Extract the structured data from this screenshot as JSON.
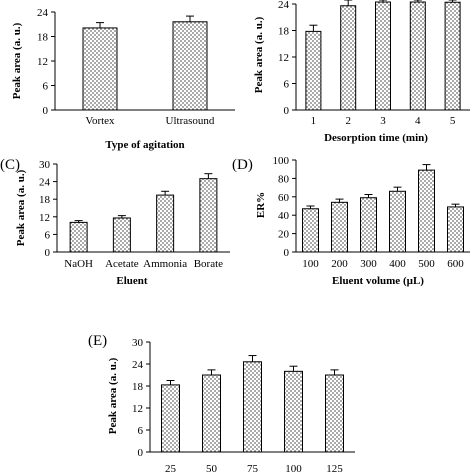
{
  "figure": {
    "pattern_color": "#6e6e6e",
    "panels": [
      {
        "panel_label": "",
        "chart_data": {
          "type": "bar",
          "categories": [
            "Vortex",
            "Ultrasound"
          ],
          "values": [
            20.1,
            21.6
          ],
          "errors": [
            1.3,
            1.4
          ],
          "xlabel": "Type of agitation",
          "ylabel": "Peak area (a. u.)",
          "ylim": [
            0,
            24
          ],
          "yticks": [
            0,
            6,
            12,
            18,
            24
          ],
          "grid": false
        }
      },
      {
        "panel_label": "",
        "chart_data": {
          "type": "bar",
          "categories": [
            "1",
            "2",
            "3",
            "4",
            "5"
          ],
          "values": [
            17.8,
            23.6,
            24.9,
            24.9,
            24.4
          ],
          "errors": [
            1.4,
            1.9,
            1.6,
            1.6,
            1.6
          ],
          "xlabel": "Desorption time (min)",
          "ylabel": "Peak area (a. u.)",
          "ylim": [
            0,
            24
          ],
          "yticks": [
            0,
            6,
            12,
            18,
            24
          ],
          "grid": false
        }
      },
      {
        "panel_label": "(C)",
        "chart_data": {
          "type": "bar",
          "categories": [
            "NaOH",
            "Acetate",
            "Ammonia",
            "Borate"
          ],
          "values": [
            10.1,
            11.6,
            19.4,
            25.0
          ],
          "errors": [
            0.6,
            0.8,
            1.3,
            1.7
          ],
          "xlabel": "Eluent",
          "ylabel": "Peak area (a. u.)",
          "ylim": [
            0,
            30
          ],
          "yticks": [
            0,
            6,
            12,
            18,
            24,
            30
          ],
          "grid": false
        }
      },
      {
        "panel_label": "(D)",
        "chart_data": {
          "type": "bar",
          "categories": [
            "100",
            "200",
            "300",
            "400",
            "500",
            "600"
          ],
          "values": [
            47,
            54,
            59,
            66,
            89,
            49
          ],
          "errors": [
            3,
            3.5,
            3.5,
            4.5,
            6,
            3
          ],
          "xlabel": "Eluent volume (µL)",
          "ylabel": "ER%",
          "ylim": [
            0,
            100
          ],
          "yticks": [
            0,
            20,
            40,
            60,
            80,
            100
          ],
          "grid": false
        }
      },
      {
        "panel_label": "(E)",
        "chart_data": {
          "type": "bar",
          "categories": [
            "25",
            "50",
            "75",
            "100",
            "125"
          ],
          "values": [
            18.3,
            21.0,
            24.6,
            22.0,
            21.0
          ],
          "errors": [
            1.2,
            1.4,
            1.7,
            1.4,
            1.4
          ],
          "xlabel": "",
          "ylabel": "Peak area (a. u.)",
          "ylim": [
            0,
            30
          ],
          "yticks": [
            0,
            6,
            12,
            18,
            24,
            30
          ],
          "grid": false
        }
      }
    ]
  }
}
